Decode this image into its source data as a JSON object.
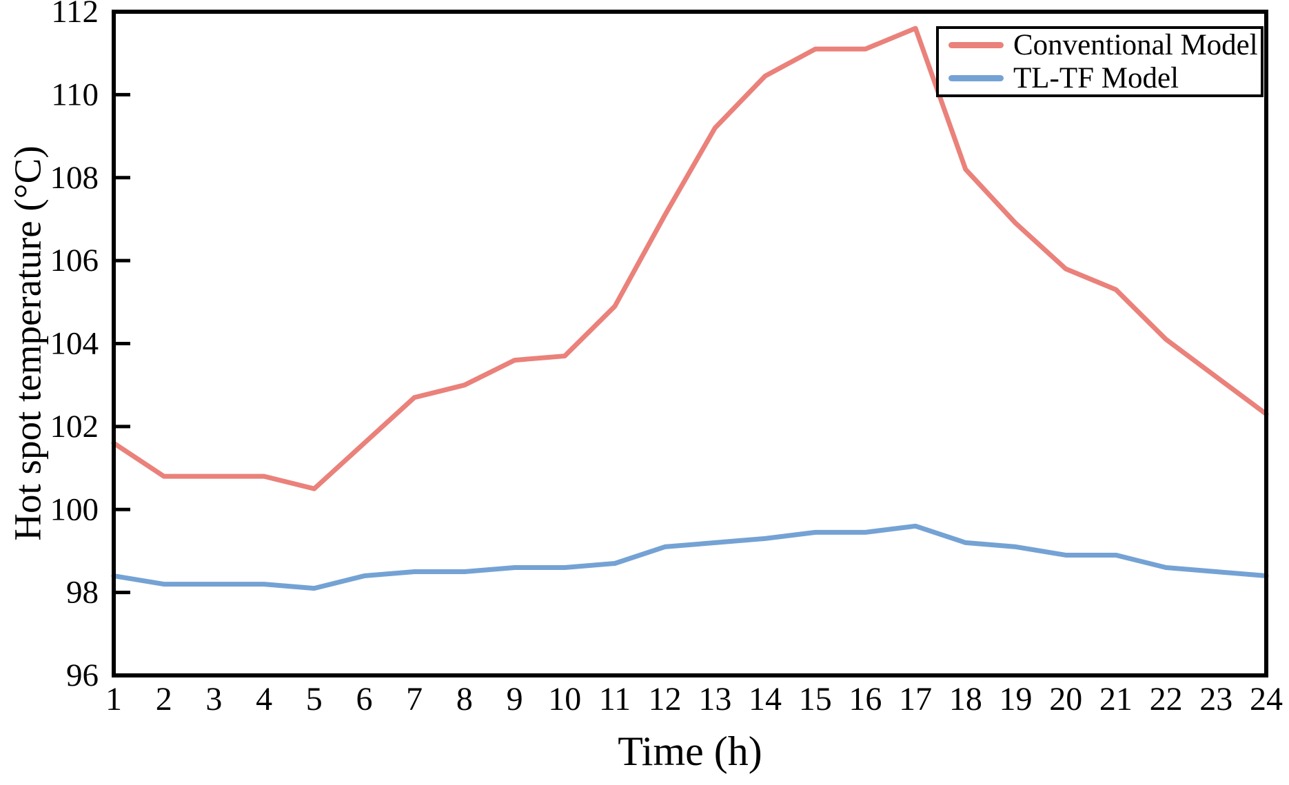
{
  "chart_data": {
    "type": "line",
    "title": "",
    "xlabel": "Time (h)",
    "ylabel": "Hot spot temperature (°C)",
    "xlim": [
      1,
      24
    ],
    "ylim": [
      96,
      112
    ],
    "xticks": [
      1,
      2,
      3,
      4,
      5,
      6,
      7,
      8,
      9,
      10,
      11,
      12,
      13,
      14,
      15,
      16,
      17,
      18,
      19,
      20,
      21,
      22,
      23,
      24
    ],
    "yticks": [
      96,
      98,
      100,
      102,
      104,
      106,
      108,
      110,
      112
    ],
    "grid": false,
    "legend_position": "top-right",
    "axis_color": "#000000",
    "x": [
      1,
      2,
      3,
      4,
      5,
      6,
      7,
      8,
      9,
      10,
      11,
      12,
      13,
      14,
      15,
      16,
      17,
      18,
      19,
      20,
      21,
      22,
      23,
      24
    ],
    "series": [
      {
        "name": "Conventional Model",
        "color": "#EA817A",
        "values": [
          101.6,
          100.8,
          100.8,
          100.8,
          100.5,
          101.6,
          102.7,
          103.0,
          103.6,
          103.7,
          104.9,
          107.1,
          109.2,
          110.45,
          111.1,
          111.1,
          111.6,
          108.2,
          106.9,
          105.8,
          105.3,
          104.1,
          103.2,
          102.3
        ]
      },
      {
        "name": "TL-TF Model",
        "color": "#74A2D4",
        "values": [
          98.4,
          98.2,
          98.2,
          98.2,
          98.1,
          98.4,
          98.5,
          98.5,
          98.6,
          98.6,
          98.7,
          99.1,
          99.2,
          99.3,
          99.45,
          99.45,
          99.6,
          99.2,
          99.1,
          98.9,
          98.9,
          98.6,
          98.5,
          98.4
        ]
      }
    ]
  }
}
